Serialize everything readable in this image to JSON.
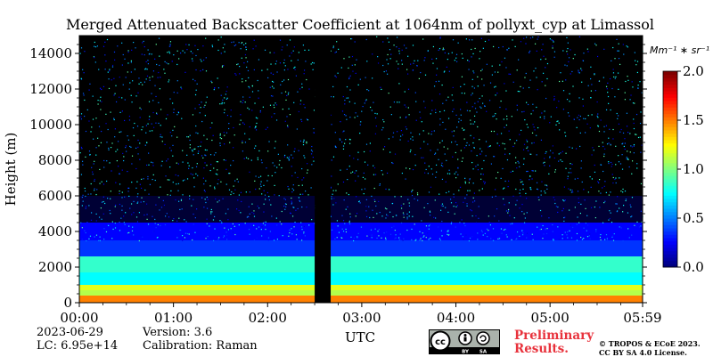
{
  "chart_data": {
    "type": "heatmap",
    "title": "Merged Attenuated Backscatter Coefficient at 1064nm of pollyxt_cyp at Limassol",
    "xlabel": "UTC",
    "ylabel": "Height (m)",
    "x_ticks": [
      "00:00",
      "01:00",
      "02:00",
      "03:00",
      "04:00",
      "05:00",
      "05:59"
    ],
    "x_range_hours": [
      0,
      5.983
    ],
    "y_ticks": [
      0,
      2000,
      4000,
      6000,
      8000,
      10000,
      12000,
      14000
    ],
    "ylim": [
      0,
      15000
    ],
    "colorbar": {
      "unit_label": "Mm⁻¹ ∗ sr⁻¹",
      "ticks": [
        "0.0",
        "0.5",
        "1.0",
        "1.5",
        "2.0"
      ],
      "range": [
        0,
        2.0
      ],
      "colormap": "jet"
    },
    "no_data_gap_hours": [
      2.5,
      2.67
    ],
    "layers": [
      {
        "height_range_m": [
          0,
          400
        ],
        "value": 1.5
      },
      {
        "height_range_m": [
          400,
          700
        ],
        "value": 1.1
      },
      {
        "height_range_m": [
          700,
          1000
        ],
        "value": 1.2
      },
      {
        "height_range_m": [
          1000,
          1700
        ],
        "value": 0.75
      },
      {
        "height_range_m": [
          1700,
          2600
        ],
        "value": 0.85
      },
      {
        "height_range_m": [
          2600,
          3500
        ],
        "value": 0.35
      },
      {
        "height_range_m": [
          3500,
          4500
        ],
        "value": 0.25
      }
    ]
  },
  "footer": {
    "date": "2023-06-29",
    "lc": "LC: 6.95e+14",
    "version": "Version: 3.6",
    "calibration": "Calibration: Raman",
    "prelim_line1": "Preliminary",
    "prelim_line2": "Results.",
    "copyright_line1": "© TROPOS & ECoE 2023.",
    "copyright_line2": "CC BY SA 4.0 License.",
    "license_badge": "cc-by-sa-icon"
  }
}
